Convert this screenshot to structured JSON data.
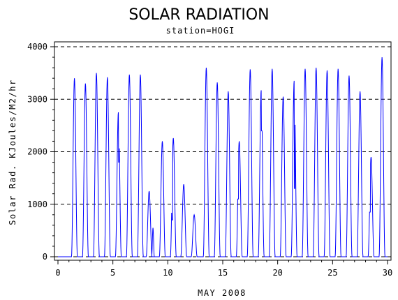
{
  "chart_data": {
    "type": "line",
    "title": "SOLAR RADIATION",
    "subtitle": "station=HOGI",
    "xlabel": "MAY 2008",
    "ylabel": "Solar Rad. KJoules/M2/hr",
    "xlim": [
      0,
      30
    ],
    "ylim": [
      0,
      4000
    ],
    "x_ticks": [
      0,
      5,
      10,
      15,
      20,
      25,
      30
    ],
    "y_ticks": [
      0,
      1000,
      2000,
      3000,
      4000
    ],
    "grid": "horizontal dashed at y ticks",
    "series_color": "#0000ff",
    "series": [
      {
        "values_note": "hourly",
        "x": [
          0.0,
          0.25,
          0.29,
          0.5,
          0.71,
          0.75,
          1.0,
          1.25,
          1.29,
          1.5,
          1.71,
          1.75,
          2.0,
          2.25,
          2.29,
          2.5,
          2.71,
          2.75,
          3.0,
          3.25,
          3.29,
          3.5,
          3.71,
          3.75,
          4.0,
          4.25,
          4.29,
          4.5,
          4.71,
          4.75,
          5.0,
          5.25,
          5.29,
          5.5,
          5.71,
          5.75,
          6.0,
          6.25,
          6.29,
          6.5,
          6.71,
          6.75,
          7.0,
          7.25,
          7.29,
          7.5,
          7.71,
          7.75,
          8.0,
          8.25,
          8.29,
          8.5,
          8.71,
          8.75,
          9.0,
          9.25,
          9.29,
          9.5,
          9.71,
          9.75,
          10.0,
          10.25,
          10.29,
          10.5,
          10.71,
          10.75,
          11.0,
          11.25,
          11.29,
          11.5,
          11.71,
          11.75,
          12.0,
          12.25,
          12.29,
          12.5,
          12.71,
          12.75,
          13.0,
          13.25,
          13.29,
          13.5,
          13.71,
          13.75,
          14.0,
          14.25,
          14.29,
          14.5,
          14.71,
          14.75,
          15.0,
          15.25,
          15.29,
          15.5,
          15.71,
          15.75,
          16.0,
          16.25,
          16.29,
          16.5,
          16.71,
          16.75,
          17.0,
          17.25,
          17.29,
          17.5,
          17.71,
          17.75,
          18.0,
          18.25,
          18.29,
          18.5,
          18.71,
          18.75,
          19.0,
          19.25,
          19.29,
          19.5,
          19.71,
          19.75,
          20.0,
          20.25,
          20.29,
          20.5,
          20.71,
          20.75,
          21.0,
          21.25,
          21.29,
          21.5,
          21.71,
          21.75,
          22.0,
          22.25,
          22.29,
          22.5,
          22.71,
          22.75,
          23.0,
          23.25,
          23.29,
          23.5,
          23.71,
          23.75,
          24.0,
          24.25,
          24.29,
          24.5,
          24.71,
          24.75,
          25.0,
          25.25,
          25.29,
          25.5,
          25.71,
          25.75,
          26.0,
          26.25,
          26.29,
          26.5,
          26.71,
          26.75,
          27.0,
          27.25,
          27.29,
          27.5,
          27.71,
          27.75,
          28.0,
          28.25,
          28.29,
          28.5,
          28.71,
          28.75,
          29.0,
          29.25,
          29.29,
          29.5,
          29.71,
          29.75,
          30.0
        ],
        "peaks": [
          {
            "day": 1.5,
            "value": 3400
          },
          {
            "day": 2.5,
            "value": 3300
          },
          {
            "day": 3.5,
            "value": 3500
          },
          {
            "day": 4.5,
            "value": 3420
          },
          {
            "day": 5.5,
            "value": 2750,
            "dip": 1800
          },
          {
            "day": 6.5,
            "value": 3470
          },
          {
            "day": 7.5,
            "value": 3470
          },
          {
            "day": 8.3,
            "value": 1250,
            "second": 550
          },
          {
            "day": 9.5,
            "value": 2200
          },
          {
            "day": 10.5,
            "value": 2260,
            "pre": 700
          },
          {
            "day": 11.45,
            "value": 1380
          },
          {
            "day": 12.4,
            "value": 800
          },
          {
            "day": 13.5,
            "value": 3600
          },
          {
            "day": 14.5,
            "value": 3320
          },
          {
            "day": 15.5,
            "value": 3150
          },
          {
            "day": 16.5,
            "value": 2200,
            "pre": 1100
          },
          {
            "day": 17.5,
            "value": 3570
          },
          {
            "day": 18.5,
            "value": 3170,
            "dip": 2400
          },
          {
            "day": 19.5,
            "value": 3580
          },
          {
            "day": 20.5,
            "value": 3050
          },
          {
            "day": 21.5,
            "value": 3350,
            "dip": 1300
          },
          {
            "day": 22.5,
            "value": 3580
          },
          {
            "day": 23.5,
            "value": 3600
          },
          {
            "day": 24.5,
            "value": 3550
          },
          {
            "day": 25.5,
            "value": 3580
          },
          {
            "day": 26.5,
            "value": 3450
          },
          {
            "day": 27.5,
            "value": 3150
          },
          {
            "day": 28.5,
            "value": 1900,
            "pre": 850
          },
          {
            "day": 29.5,
            "value": 3800
          }
        ]
      }
    ]
  }
}
